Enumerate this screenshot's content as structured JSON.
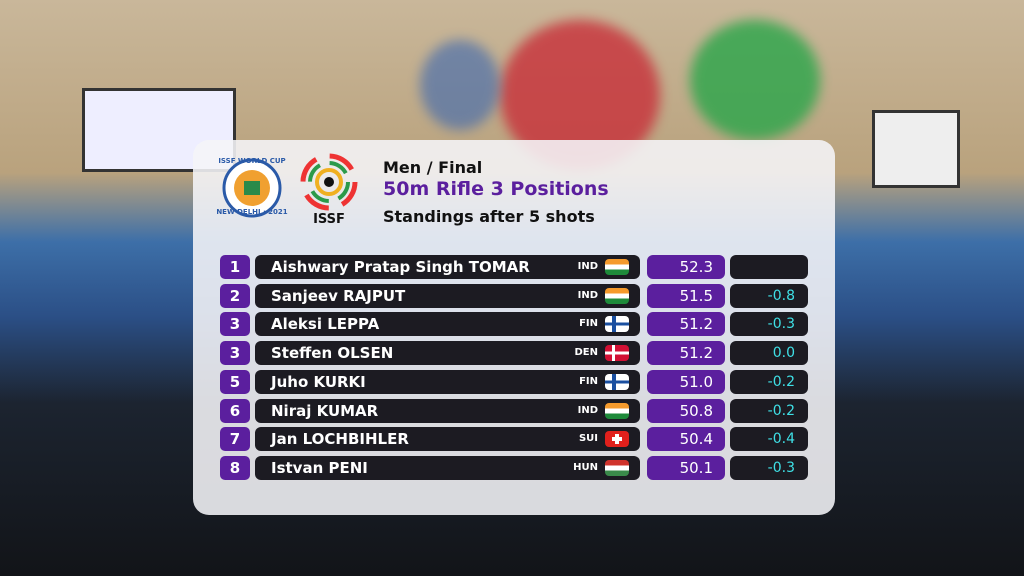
{
  "logos": {
    "cup_top": "ISSF WORLD CUP",
    "cup_bottom": "NEW DELHI · 2021",
    "issf": "ISSF"
  },
  "header": {
    "stage": "Men / Final",
    "event": "50m Rifle 3 Positions",
    "subtitle": "Standings after 5 shots"
  },
  "table": {
    "rows": [
      {
        "rank": "1",
        "name": "Aishwary Pratap Singh TOMAR",
        "country": "IND",
        "score": "52.3"
      },
      {
        "rank": "2",
        "name": "Sanjeev RAJPUT",
        "country": "IND",
        "score": "51.5",
        "diff": "-0.8"
      },
      {
        "rank": "3",
        "name": "Aleksi LEPPA",
        "country": "FIN",
        "score": "51.2",
        "diff": "-0.3"
      },
      {
        "rank": "3",
        "name": "Steffen OLSEN",
        "country": "DEN",
        "score": "51.2",
        "diff": "0.0"
      },
      {
        "rank": "5",
        "name": "Juho KURKI",
        "country": "FIN",
        "score": "51.0",
        "diff": "-0.2"
      },
      {
        "rank": "6",
        "name": "Niraj KUMAR",
        "country": "IND",
        "score": "50.8",
        "diff": "-0.2"
      },
      {
        "rank": "7",
        "name": "Jan LOCHBIHLER",
        "country": "SUI",
        "score": "50.4",
        "diff": "-0.4"
      },
      {
        "rank": "8",
        "name": "Istvan PENI",
        "country": "HUN",
        "score": "50.1",
        "diff": "-0.3"
      }
    ]
  }
}
